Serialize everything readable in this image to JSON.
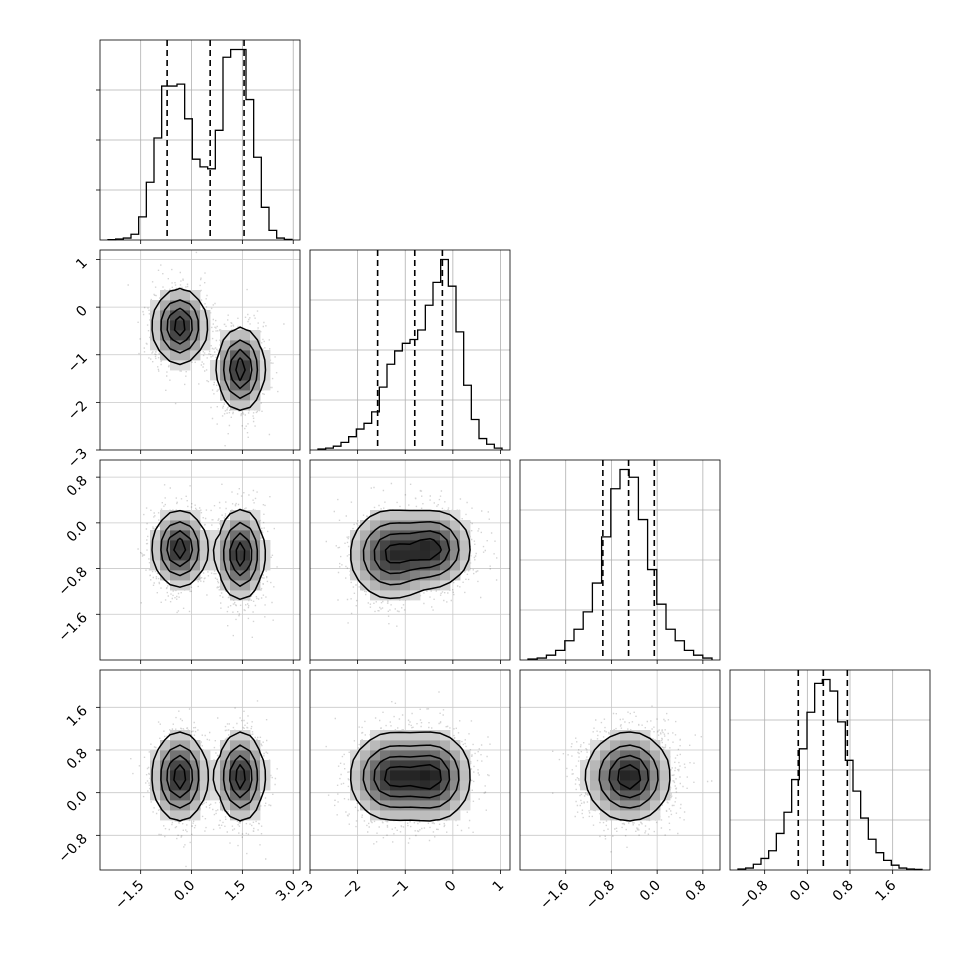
{
  "chart_data": {
    "type": "corner",
    "n_params": 4,
    "grid": true,
    "parameters": [
      {
        "range": [
          -2.7,
          3.2
        ],
        "ticks": [
          -1.5,
          0.0,
          1.5,
          3.0
        ],
        "tick_labels": [
          "−1.5",
          "0.0",
          "1.5",
          "3.0"
        ],
        "quantiles": [
          -0.72,
          0.55,
          1.55
        ]
      },
      {
        "range": [
          -3.0,
          1.2
        ],
        "ticks": [
          -3,
          -2,
          -1,
          0,
          1
        ],
        "tick_labels": [
          "−3",
          "−2",
          "−1",
          "0",
          "1"
        ],
        "quantiles": [
          -1.58,
          -0.8,
          -0.22
        ]
      },
      {
        "range": [
          -2.4,
          1.1
        ],
        "ticks": [
          -1.6,
          -0.8,
          0.0,
          0.8
        ],
        "tick_labels": [
          "−1.6",
          "−0.8",
          "0.0",
          "0.8"
        ],
        "quantiles": [
          -0.95,
          -0.5,
          -0.05
        ]
      },
      {
        "range": [
          -1.45,
          2.3
        ],
        "ticks": [
          -0.8,
          0.0,
          0.8,
          1.6
        ],
        "tick_labels": [
          "−0.8",
          "0.0",
          "0.8",
          "1.6"
        ],
        "quantiles": [
          -0.17,
          0.3,
          0.75
        ]
      }
    ],
    "histograms": [
      {
        "param": 0,
        "counts": [
          0.2,
          0.5,
          1,
          3,
          12,
          30,
          53,
          80,
          80,
          81,
          63,
          42,
          38,
          37,
          57,
          95,
          99,
          99,
          73,
          43,
          17,
          5,
          1,
          0.3
        ]
      },
      {
        "param": 1,
        "counts": [
          0.5,
          1,
          2,
          4,
          7,
          11,
          14,
          20,
          33,
          45,
          52,
          56,
          58,
          63,
          76,
          88,
          100,
          86,
          62,
          34,
          16,
          6,
          3,
          1
        ]
      },
      {
        "param": 2,
        "counts": [
          0.5,
          1,
          2.5,
          5,
          10,
          16,
          25,
          40,
          64,
          89,
          99,
          95,
          73,
          47,
          29,
          16,
          10,
          5,
          2.5,
          1
        ]
      },
      {
        "param": 3,
        "counts": [
          0.5,
          1,
          3,
          6,
          10,
          19,
          30,
          47,
          63,
          82,
          97,
          99,
          93,
          77,
          57,
          41,
          27,
          16,
          9,
          5,
          2.5,
          1,
          0.5,
          0.3
        ]
      }
    ],
    "density_components": [
      {
        "weight": 0.5,
        "mean": [
          -0.35,
          -0.4,
          -0.45,
          0.3
        ],
        "sd": [
          0.38,
          0.38,
          0.32,
          0.4
        ]
      },
      {
        "weight": 0.5,
        "mean": [
          1.45,
          -1.3,
          -0.55,
          0.3
        ],
        "sd": [
          0.33,
          0.42,
          0.38,
          0.4
        ]
      }
    ]
  }
}
